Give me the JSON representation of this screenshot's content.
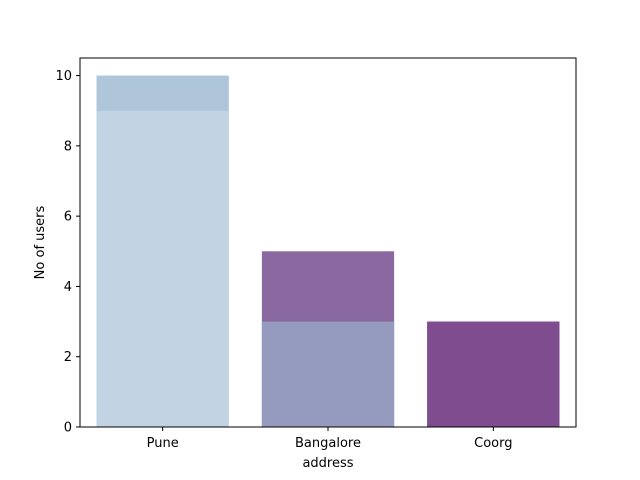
{
  "chart_data": {
    "type": "bar",
    "xlabel": "address",
    "ylabel": "No of users",
    "categories": [
      "Pune",
      "Bangalore",
      "Coorg"
    ],
    "ylim": [
      0,
      10.5
    ],
    "yticks": [
      0,
      2,
      4,
      6,
      8,
      10
    ],
    "grid": false,
    "layers": [
      {
        "values": [
          10,
          5,
          3
        ],
        "colors": [
          "#afc5d9",
          "#8a69a0",
          "#7f4c8f"
        ]
      },
      {
        "values": [
          9,
          3,
          3
        ],
        "colors": [
          "#c2d4e3",
          "#959bbf",
          "#7f4c8f"
        ]
      }
    ]
  }
}
